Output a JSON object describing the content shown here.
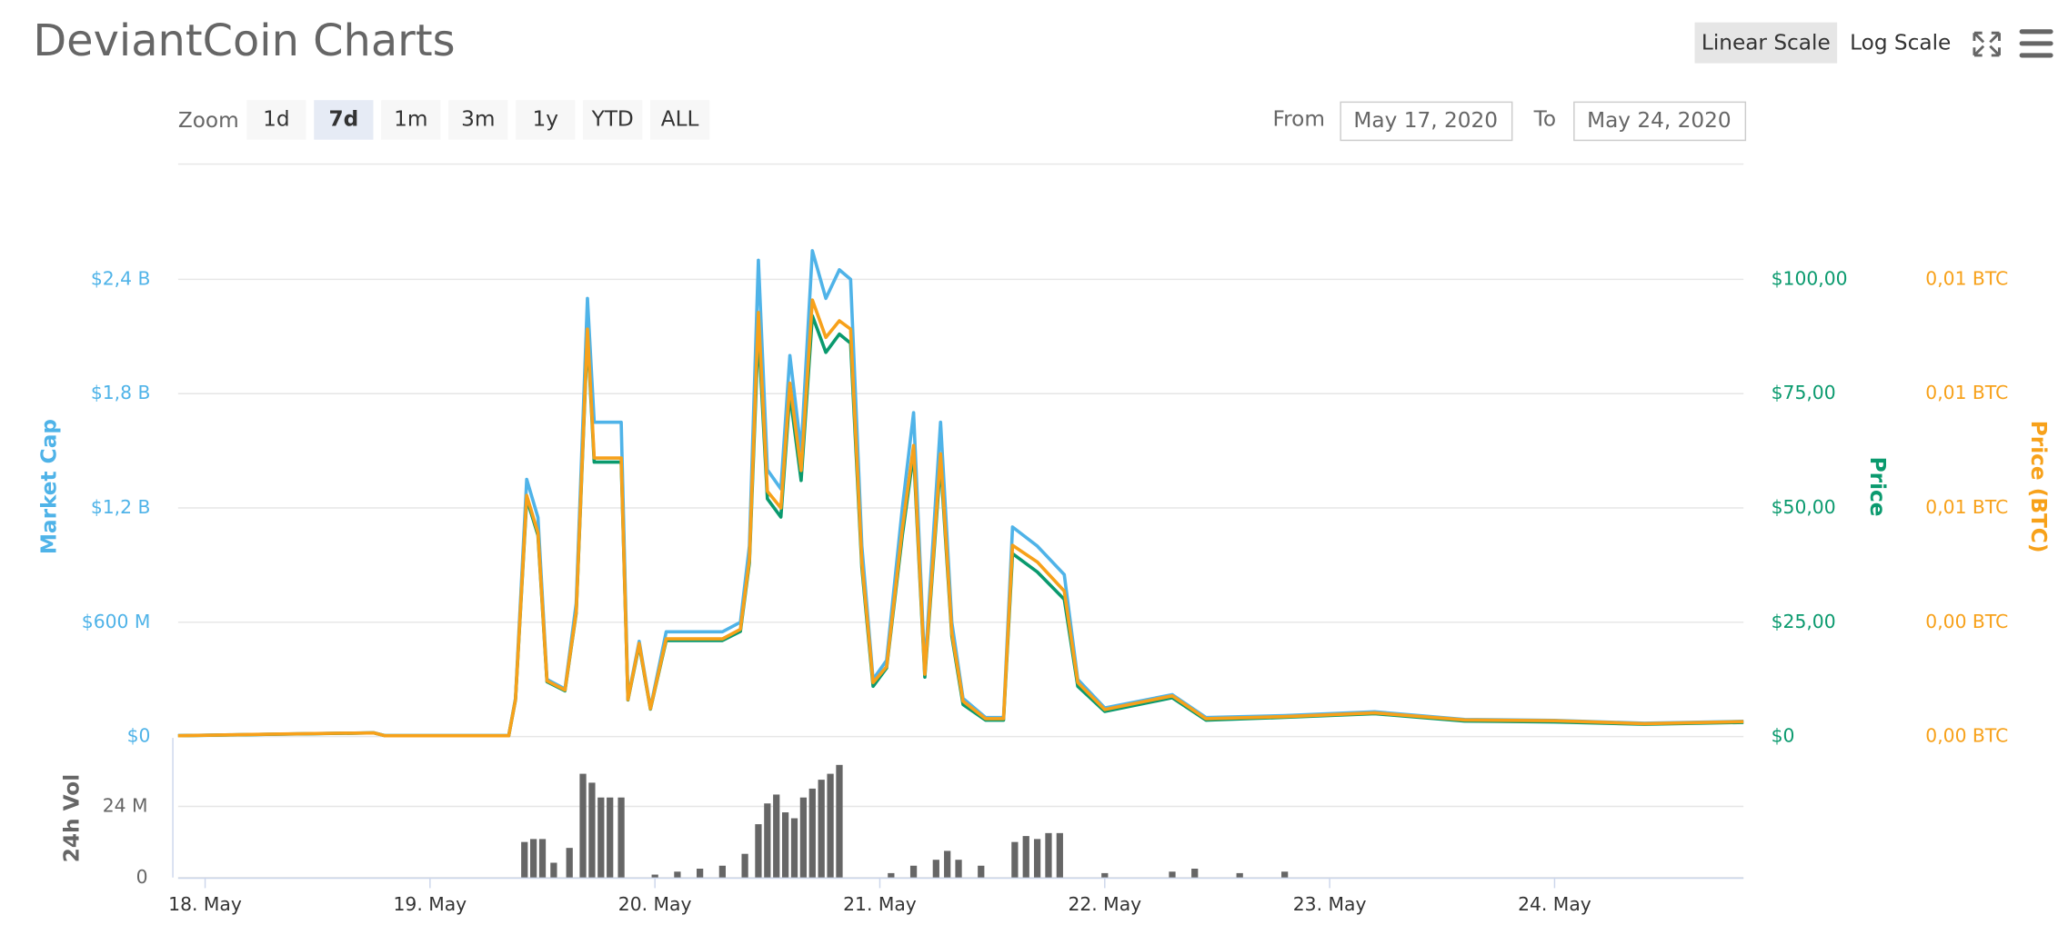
{
  "header": {
    "title": "DeviantCoin Charts"
  },
  "controls": {
    "scale_buttons": [
      "Linear Scale",
      "Log Scale"
    ],
    "zoom_label": "Zoom",
    "zoom_buttons": [
      "1d",
      "7d",
      "1m",
      "3m",
      "1y",
      "YTD",
      "ALL"
    ],
    "from_label": "From",
    "from": "May 17, 2020",
    "to_label": "To",
    "to": "May 24, 2020"
  },
  "chart_data": [
    {
      "type": "line",
      "y_label": "Market Cap",
      "y2_label": "Price",
      "y3_label": "Price (BTC)",
      "grid": true,
      "xlim": [
        17.88,
        24.84
      ],
      "x": [
        17.88,
        18.3,
        18.75,
        18.8,
        19.35,
        19.38,
        19.43,
        19.48,
        19.52,
        19.6,
        19.65,
        19.7,
        19.73,
        19.85,
        19.88,
        19.93,
        19.98,
        20.05,
        20.3,
        20.38,
        20.42,
        20.46,
        20.5,
        20.56,
        20.6,
        20.65,
        20.7,
        20.76,
        20.82,
        20.87,
        20.92,
        20.97,
        21.03,
        21.1,
        21.15,
        21.2,
        21.27,
        21.32,
        21.37,
        21.47,
        21.55,
        21.59,
        21.7,
        21.82,
        21.88,
        22.0,
        22.3,
        22.45,
        22.8,
        23.2,
        23.6,
        24.0,
        24.4,
        24.84
      ],
      "ylim": [
        0,
        2900000000
      ],
      "yticks": [
        {
          "value": 0,
          "label": "$0"
        },
        {
          "value": 600000000,
          "label": "$600 M"
        },
        {
          "value": 1200000000,
          "label": "$1,2 B"
        },
        {
          "value": 1800000000,
          "label": "$1,8 B"
        },
        {
          "value": 2400000000,
          "label": "$2,4 B"
        }
      ],
      "y2lim": [
        0,
        120.8
      ],
      "y2ticks": [
        {
          "value": 0,
          "label": "$0"
        },
        {
          "value": 25,
          "label": "$25,00"
        },
        {
          "value": 50,
          "label": "$50,00"
        },
        {
          "value": 75,
          "label": "$75,00"
        },
        {
          "value": 100,
          "label": "$100,00"
        }
      ],
      "y3lim": [
        0,
        0.013288
      ],
      "y3ticks": [
        {
          "value": 0,
          "label": "0,00 BTC"
        },
        {
          "value": 0.00275,
          "label": "0,00 BTC"
        },
        {
          "value": 0.0055,
          "label": "0,01 BTC"
        },
        {
          "value": 0.00825,
          "label": "0,01 BTC"
        },
        {
          "value": 0.011,
          "label": "0,01 BTC"
        }
      ],
      "series": [
        {
          "name": "Market Cap",
          "color": "#4fb3e8",
          "axis": "y",
          "values": [
            5000000,
            12000000,
            20000000,
            5000000,
            5000000,
            200000000,
            1350000000,
            1150000000,
            300000000,
            250000000,
            700000000,
            2300000000,
            1650000000,
            1650000000,
            200000000,
            500000000,
            150000000,
            550000000,
            550000000,
            600000000,
            1000000000,
            2500000000,
            1400000000,
            1300000000,
            2000000000,
            1500000000,
            2550000000,
            2300000000,
            2450000000,
            2400000000,
            1000000000,
            300000000,
            400000000,
            1200000000,
            1700000000,
            350000000,
            1650000000,
            600000000,
            200000000,
            100000000,
            100000000,
            1100000000,
            1000000000,
            850000000,
            300000000,
            150000000,
            220000000,
            100000000,
            110000000,
            130000000,
            90000000,
            85000000,
            70000000,
            80000000
          ]
        },
        {
          "name": "Price",
          "color": "#0a9a6e",
          "axis": "y2",
          "values": [
            0.2,
            0.5,
            0.8,
            0.2,
            0.2,
            8,
            52,
            44,
            12,
            10,
            27,
            88,
            60,
            60,
            8,
            20,
            6,
            21,
            21,
            23,
            38,
            89,
            52,
            48,
            75,
            56,
            92,
            84,
            88,
            86,
            37,
            11,
            15,
            44,
            62,
            13,
            60,
            22,
            7,
            3.6,
            3.6,
            40,
            36,
            30,
            11,
            5.5,
            8.5,
            3.6,
            4.2,
            5,
            3.4,
            3.2,
            2.7,
            3.1
          ]
        },
        {
          "name": "Price (BTC)",
          "color": "#f7a11a",
          "axis": "y3",
          "values": [
            2e-05,
            6e-05,
            9e-05,
            2e-05,
            2e-05,
            0.00089,
            0.0058,
            0.0049,
            0.00134,
            0.00112,
            0.003,
            0.0098,
            0.0067,
            0.0067,
            0.00089,
            0.00224,
            0.00067,
            0.00235,
            0.00235,
            0.00258,
            0.00426,
            0.0102,
            0.0059,
            0.0055,
            0.0085,
            0.0064,
            0.0105,
            0.0096,
            0.01,
            0.0098,
            0.0042,
            0.0013,
            0.00168,
            0.005,
            0.007,
            0.0015,
            0.0068,
            0.0025,
            0.00085,
            0.00043,
            0.00043,
            0.0046,
            0.0042,
            0.0035,
            0.0013,
            0.00065,
            0.00098,
            0.00043,
            0.00048,
            0.00057,
            0.0004,
            0.00038,
            0.00031,
            0.00036
          ]
        }
      ]
    },
    {
      "type": "bar",
      "y_label": "24h Vol",
      "color": "#666666",
      "grid": true,
      "xlim": [
        17.88,
        24.84
      ],
      "xticks": [
        {
          "value": 18,
          "label": "18. May"
        },
        {
          "value": 19,
          "label": "19. May"
        },
        {
          "value": 20,
          "label": "20. May"
        },
        {
          "value": 21,
          "label": "21. May"
        },
        {
          "value": 22,
          "label": "22. May"
        },
        {
          "value": 23,
          "label": "23. May"
        },
        {
          "value": 24,
          "label": "24. May"
        }
      ],
      "ylim": [
        0,
        40000000
      ],
      "yticks": [
        0,
        {
          "value": 24000000,
          "label": "24 M"
        }
      ],
      "x": [
        19.42,
        19.46,
        19.5,
        19.55,
        19.62,
        19.68,
        19.72,
        19.76,
        19.8,
        19.85,
        20.0,
        20.1,
        20.2,
        20.3,
        20.4,
        20.46,
        20.5,
        20.54,
        20.58,
        20.62,
        20.66,
        20.7,
        20.74,
        20.78,
        20.82,
        21.05,
        21.15,
        21.25,
        21.3,
        21.35,
        21.45,
        21.6,
        21.65,
        21.7,
        21.75,
        21.8,
        22.0,
        22.3,
        22.4,
        22.6,
        22.8
      ],
      "values": [
        12000000,
        13000000,
        13000000,
        5000000,
        10000000,
        35000000,
        32000000,
        27000000,
        27000000,
        27000000,
        1000000,
        2000000,
        3000000,
        4000000,
        8000000,
        18000000,
        25000000,
        28000000,
        22000000,
        20000000,
        27000000,
        30000000,
        33000000,
        35000000,
        38000000,
        1500000,
        4000000,
        6000000,
        9000000,
        6000000,
        4000000,
        12000000,
        14000000,
        13000000,
        15000000,
        15000000,
        1500000,
        2000000,
        3000000,
        1500000,
        2000000
      ]
    }
  ]
}
